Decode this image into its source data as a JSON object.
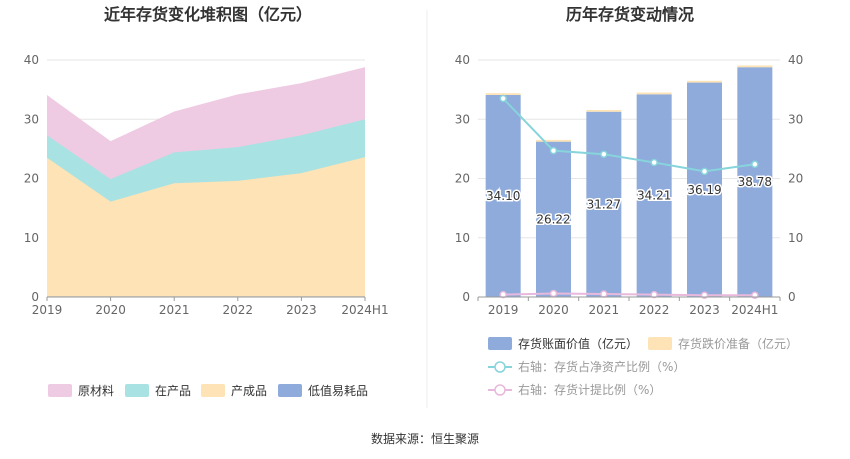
{
  "source_label": "数据来源：恒生聚源",
  "colors": {
    "raw": "#eecbe3",
    "wip": "#a9e2e3",
    "finished": "#fde3b6",
    "low_value": "#8eabdb",
    "bar": "#8eabdb",
    "bar_top": "#fde3b6",
    "ratio_line": "#87d4dc",
    "provision_line": "#e8b9dc"
  },
  "chart_data": [
    {
      "type": "area",
      "title": "近年存货变化堆积图（亿元）",
      "categories": [
        "2019",
        "2020",
        "2021",
        "2022",
        "2023",
        "2024H1"
      ],
      "ylim": [
        0,
        40
      ],
      "yticks": [
        0,
        10,
        20,
        30,
        40
      ],
      "stacked": true,
      "legend_position": "bottom",
      "series": [
        {
          "name": "原材料",
          "values": [
            6.8,
            6.4,
            6.9,
            8.9,
            8.8,
            8.8
          ]
        },
        {
          "name": "在产品",
          "values": [
            3.8,
            3.8,
            5.2,
            5.7,
            6.4,
            6.4
          ]
        },
        {
          "name": "产成品",
          "values": [
            23.4,
            16.0,
            19.1,
            19.5,
            20.8,
            23.5
          ]
        },
        {
          "name": "低值易耗品",
          "values": [
            0.1,
            0.1,
            0.1,
            0.1,
            0.1,
            0.1
          ]
        }
      ]
    },
    {
      "type": "bar",
      "title": "历年存货变动情况",
      "categories": [
        "2019",
        "2020",
        "2021",
        "2022",
        "2023",
        "2024H1"
      ],
      "ylim": [
        0,
        40
      ],
      "yticks": [
        0,
        10,
        20,
        30,
        40
      ],
      "y2lim": [
        0,
        40
      ],
      "y2ticks": [
        0,
        10,
        20,
        30,
        40
      ],
      "legend_position": "bottom",
      "series": [
        {
          "name": "存货账面价值（亿元）",
          "values": [
            34.1,
            26.22,
            31.27,
            34.21,
            36.19,
            38.78
          ],
          "labels": [
            "34.10",
            "26.22",
            "31.27",
            "34.21",
            "36.19",
            "38.78"
          ]
        },
        {
          "name": "存货跌价准备（亿元）",
          "values": [
            0.3,
            0.3,
            0.3,
            0.3,
            0.3,
            0.3
          ]
        },
        {
          "name": "右轴：存货占净资产比例（%）",
          "axis": "right",
          "values": [
            33.5,
            24.7,
            24.1,
            22.7,
            21.2,
            22.4
          ]
        },
        {
          "name": "右轴：存货计提比例（%）",
          "axis": "right",
          "values": [
            0.4,
            0.6,
            0.5,
            0.4,
            0.3,
            0.3
          ]
        }
      ]
    }
  ]
}
